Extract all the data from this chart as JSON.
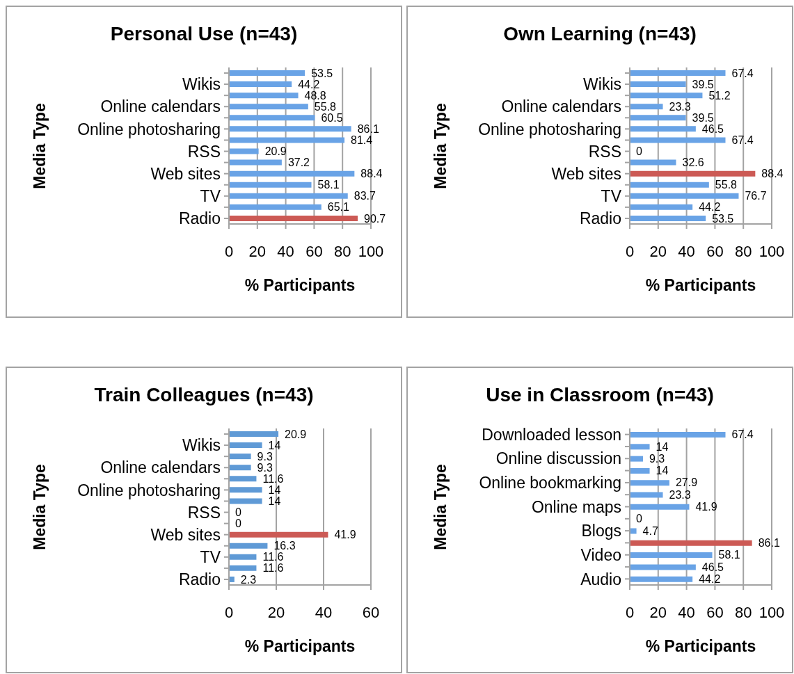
{
  "chart_data": [
    {
      "type": "bar",
      "title": "Personal Use (n=43)",
      "xlabel": "% Participants",
      "ylabel": "Media Type",
      "orientation": "horizontal",
      "categories": [
        null,
        "Wikis",
        null,
        "Online calendars",
        null,
        "Online photosharing",
        null,
        "RSS",
        null,
        "Web sites",
        null,
        "TV",
        null,
        "Radio"
      ],
      "values": [
        53.5,
        44.2,
        48.8,
        55.8,
        60.5,
        86.1,
        81.4,
        20.9,
        37.2,
        88.4,
        58.1,
        83.7,
        65.1,
        90.7
      ],
      "colors": [
        "#69a3e6",
        "#69a3e6",
        "#69a3e6",
        "#69a3e6",
        "#69a3e6",
        "#69a3e6",
        "#69a3e6",
        "#69a3e6",
        "#69a3e6",
        "#69a3e6",
        "#69a3e6",
        "#69a3e6",
        "#69a3e6",
        "#cc5a55"
      ],
      "xlim": [
        0,
        100
      ],
      "xticks": [
        0,
        20,
        40,
        60,
        80,
        100
      ],
      "grid": "x",
      "data_labels": true
    },
    {
      "type": "bar",
      "title": "Own Learning (n=43)",
      "xlabel": "% Participants",
      "ylabel": "Media Type",
      "orientation": "horizontal",
      "categories": [
        null,
        "Wikis",
        null,
        "Online calendars",
        null,
        "Online photosharing",
        null,
        "RSS",
        null,
        "Web sites",
        null,
        "TV",
        null,
        "Radio"
      ],
      "values": [
        67.4,
        39.5,
        51.2,
        23.3,
        39.5,
        46.5,
        67.4,
        0,
        32.6,
        88.4,
        55.8,
        76.7,
        44.2,
        53.5
      ],
      "colors": [
        "#69a3e6",
        "#69a3e6",
        "#69a3e6",
        "#69a3e6",
        "#69a3e6",
        "#69a3e6",
        "#69a3e6",
        "#69a3e6",
        "#69a3e6",
        "#cc5a55",
        "#69a3e6",
        "#69a3e6",
        "#69a3e6",
        "#69a3e6"
      ],
      "xlim": [
        0,
        100
      ],
      "xticks": [
        0,
        20,
        40,
        60,
        80,
        100
      ],
      "grid": "x",
      "data_labels": true
    },
    {
      "type": "bar",
      "title": "Train Colleagues (n=43)",
      "xlabel": "% Participants",
      "ylabel": "Media Type",
      "orientation": "horizontal",
      "categories": [
        null,
        "Wikis",
        null,
        "Online calendars",
        null,
        "Online photosharing",
        null,
        "RSS",
        null,
        "Web sites",
        null,
        "TV",
        null,
        "Radio"
      ],
      "values": [
        20.9,
        14,
        9.3,
        9.3,
        11.6,
        14,
        14,
        0,
        0,
        41.9,
        16.3,
        11.6,
        11.6,
        2.3
      ],
      "colors": [
        "#5f9ad6",
        "#5f9ad6",
        "#5f9ad6",
        "#5f9ad6",
        "#5f9ad6",
        "#5f9ad6",
        "#5f9ad6",
        "#5f9ad6",
        "#5f9ad6",
        "#cc5a55",
        "#5f9ad6",
        "#5f9ad6",
        "#5f9ad6",
        "#5f9ad6"
      ],
      "xlim": [
        0,
        60
      ],
      "xticks": [
        0,
        20,
        40,
        60
      ],
      "grid": "x",
      "data_labels": true
    },
    {
      "type": "bar",
      "title": "Use in Classroom (n=43)",
      "xlabel": "% Participants",
      "ylabel": "Media Type",
      "orientation": "horizontal",
      "categories": [
        "Downloaded lesson",
        null,
        "Online discussion",
        null,
        "Online bookmarking",
        null,
        "Online maps",
        null,
        "Blogs",
        null,
        "Video",
        null,
        "Audio"
      ],
      "values": [
        67.4,
        14,
        9.3,
        14,
        27.9,
        23.3,
        41.9,
        0,
        4.7,
        86.1,
        58.1,
        46.5,
        44.2
      ],
      "colors": [
        "#69a3e6",
        "#69a3e6",
        "#69a3e6",
        "#69a3e6",
        "#69a3e6",
        "#69a3e6",
        "#69a3e6",
        "#69a3e6",
        "#69a3e6",
        "#cc5a55",
        "#69a3e6",
        "#69a3e6",
        "#69a3e6"
      ],
      "xlim": [
        0,
        100
      ],
      "xticks": [
        0,
        20,
        40,
        60,
        80,
        100
      ],
      "grid": "x",
      "data_labels": true
    }
  ]
}
